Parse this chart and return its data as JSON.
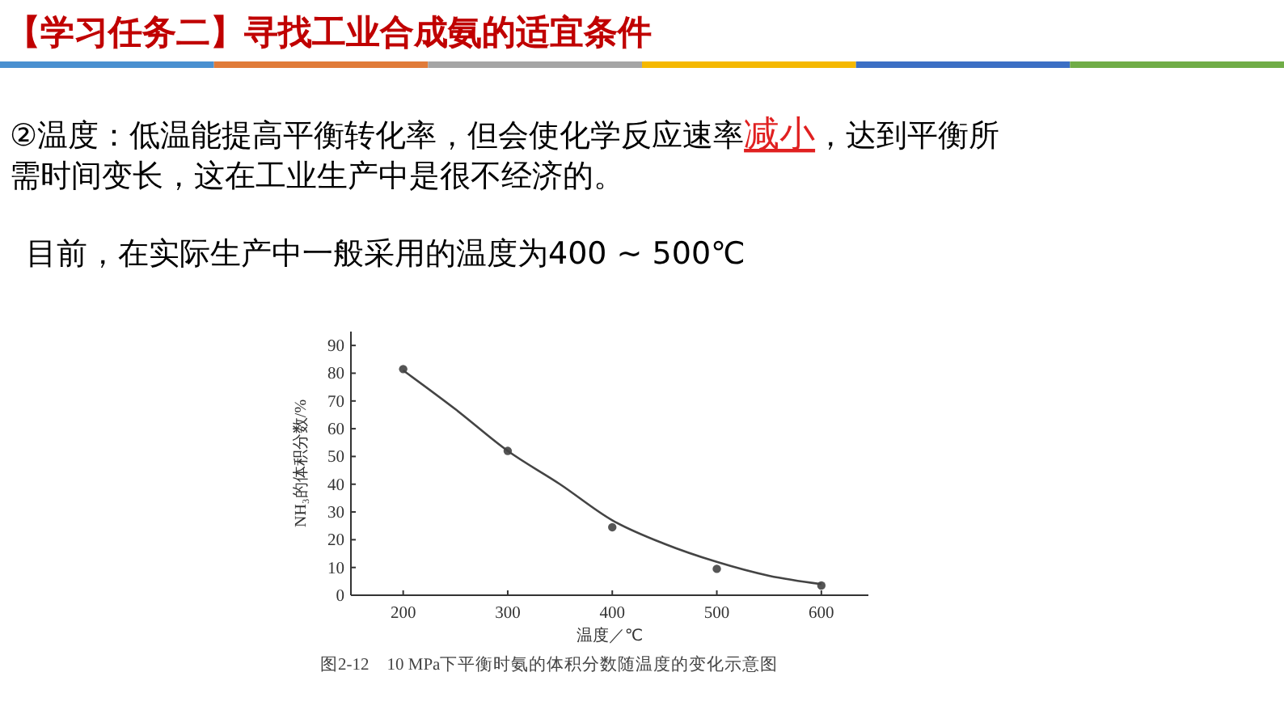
{
  "chart_data": {
    "type": "scatter",
    "title": "【学习任务二】寻找工业合成氨的适宜条件",
    "annotations": [
      "②温度：低温能提高平衡转化率，但会使化学反应速率",
      "减小",
      "，达到平衡所",
      "需时间变长，这在工业生产中是很不经济的。",
      "目前，在实际生产中一般采用的温度为400 ~ 500℃",
      "图2-12　10 MPa下平衡时氨的体积分数随温度的变化示意图"
    ],
    "xlabel": "温度／℃",
    "ylabel": "NH₃的体积分数/%",
    "xlim": [
      150,
      645
    ],
    "xticks": [
      200,
      300,
      400,
      500,
      600
    ],
    "ylim": [
      0,
      95
    ],
    "yticks": [
      0,
      10,
      20,
      30,
      40,
      50,
      60,
      70,
      80,
      90
    ],
    "grid": false,
    "series": [
      {
        "marker": "circle",
        "color": "#555555",
        "x": [
          200,
          300,
          400,
          500,
          600
        ],
        "values": [
          81.5,
          52,
          24.5,
          9.5,
          3.5
        ]
      },
      {
        "type": "line",
        "marker": "none",
        "line_style": "solid",
        "color": "#444444",
        "x": [
          200,
          250,
          300,
          350,
          400,
          450,
          500,
          550,
          600
        ],
        "values": [
          81,
          67,
          52,
          40,
          27,
          18.5,
          12,
          7,
          4
        ]
      }
    ]
  }
}
